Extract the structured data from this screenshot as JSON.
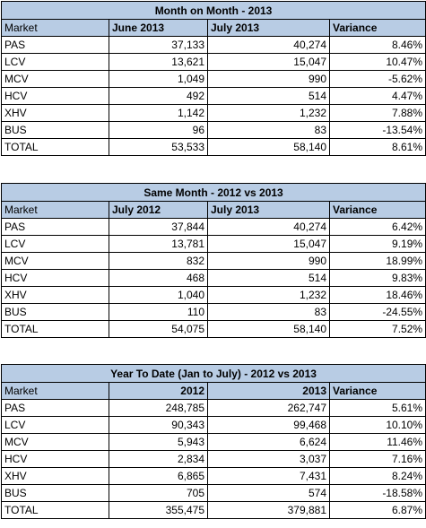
{
  "tables": [
    {
      "title": "Month on Month - 2013",
      "headers": [
        "Market",
        "June 2013",
        "July 2013",
        "Variance"
      ],
      "header_bold": [
        false,
        true,
        true,
        true
      ],
      "header_align": [
        "left",
        "left",
        "left",
        "left"
      ],
      "rows": [
        [
          "PAS",
          "37,133",
          "40,274",
          "8.46%"
        ],
        [
          "LCV",
          "13,621",
          "15,047",
          "10.47%"
        ],
        [
          "MCV",
          "1,049",
          "990",
          "-5.62%"
        ],
        [
          "HCV",
          "492",
          "514",
          "4.47%"
        ],
        [
          "XHV",
          "1,142",
          "1,232",
          "7.88%"
        ],
        [
          "BUS",
          "96",
          "83",
          "-13.54%"
        ],
        [
          "TOTAL",
          "53,533",
          "58,140",
          "8.61%"
        ]
      ]
    },
    {
      "title": "Same Month - 2012 vs 2013",
      "headers": [
        "Market",
        "July 2012",
        "July 2013",
        "Variance"
      ],
      "header_bold": [
        false,
        true,
        true,
        true
      ],
      "header_align": [
        "left",
        "left",
        "left",
        "left"
      ],
      "rows": [
        [
          "PAS",
          "37,844",
          "40,274",
          "6.42%"
        ],
        [
          "LCV",
          "13,781",
          "15,047",
          "9.19%"
        ],
        [
          "MCV",
          "832",
          "990",
          "18.99%"
        ],
        [
          "HCV",
          "468",
          "514",
          "9.83%"
        ],
        [
          "XHV",
          "1,040",
          "1,232",
          "18.46%"
        ],
        [
          "BUS",
          "110",
          "83",
          "-24.55%"
        ],
        [
          "TOTAL",
          "54,075",
          "58,140",
          "7.52%"
        ]
      ]
    },
    {
      "title": "Year To Date (Jan to July) - 2012 vs 2013",
      "headers": [
        "Market",
        "2012",
        "2013",
        "Variance"
      ],
      "header_bold": [
        false,
        true,
        true,
        true
      ],
      "header_align": [
        "left",
        "right",
        "right",
        "left"
      ],
      "rows": [
        [
          "PAS",
          "248,785",
          "262,747",
          "5.61%"
        ],
        [
          "LCV",
          "90,343",
          "99,468",
          "10.10%"
        ],
        [
          "MCV",
          "5,943",
          "6,624",
          "11.46%"
        ],
        [
          "HCV",
          "2,834",
          "3,037",
          "7.16%"
        ],
        [
          "XHV",
          "6,865",
          "7,431",
          "8.24%"
        ],
        [
          "BUS",
          "705",
          "574",
          "-18.58%"
        ],
        [
          "TOTAL",
          "355,475",
          "379,881",
          "6.87%"
        ]
      ]
    }
  ],
  "colors": {
    "header_fill": "#b8cce4",
    "border": "#000000"
  }
}
